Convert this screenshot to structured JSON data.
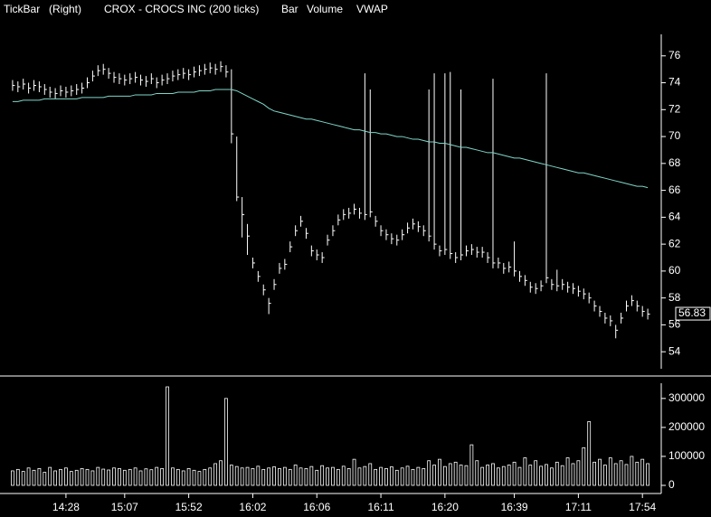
{
  "chart_data": [
    {
      "type": "ohlc",
      "title": "TickBar",
      "subtitle": "(Right)",
      "symbol": "CROX - CROCS INC (200 ticks)",
      "xlim": [
        -1,
        120
      ],
      "ylim": [
        52.6,
        77.8
      ],
      "yticks": [
        54,
        56,
        58,
        60,
        62,
        64,
        66,
        68,
        70,
        72,
        74,
        76
      ],
      "last_price": 56.83,
      "series": [
        {
          "name": "Bar",
          "color": "#ffffff",
          "high": [
            74.2,
            74.1,
            74.3,
            74.0,
            74.2,
            74.1,
            73.9,
            73.7,
            73.6,
            73.8,
            73.7,
            73.8,
            73.9,
            74.0,
            74.4,
            74.9,
            75.3,
            75.4,
            75.1,
            74.8,
            74.7,
            74.6,
            74.7,
            74.8,
            74.6,
            74.5,
            74.7,
            74.4,
            74.6,
            74.7,
            74.9,
            75.0,
            75.1,
            75.0,
            75.2,
            75.3,
            75.4,
            75.5,
            75.4,
            75.6,
            75.3,
            75.0,
            70.0,
            65.5,
            63.5,
            61.0,
            60.0,
            59.0,
            58.0,
            59.4,
            60.6,
            60.9,
            62.2,
            63.4,
            64.1,
            63.2,
            61.9,
            61.6,
            61.4,
            62.7,
            63.4,
            64.2,
            64.6,
            64.7,
            65.0,
            64.7,
            74.7,
            73.5,
            64.1,
            63.4,
            63.1,
            62.8,
            62.7,
            63.1,
            63.6,
            63.9,
            63.7,
            63.4,
            73.5,
            74.7,
            61.9,
            74.7,
            74.8,
            61.4,
            73.5,
            61.9,
            62.0,
            61.8,
            61.8,
            61.4,
            74.3,
            61.0,
            60.6,
            60.7,
            62.2,
            60.0,
            59.7,
            59.2,
            59.1,
            59.3,
            74.7,
            59.4,
            60.1,
            59.4,
            59.2,
            59.1,
            58.9,
            58.7,
            58.4,
            57.8,
            57.4,
            56.9,
            56.7,
            56.0,
            56.9,
            57.8,
            58.2,
            57.8,
            57.4,
            57.2
          ],
          "low": [
            73.4,
            73.3,
            73.5,
            73.2,
            73.4,
            73.3,
            73.1,
            72.9,
            72.8,
            73.0,
            72.9,
            73.0,
            73.1,
            73.2,
            73.6,
            74.1,
            74.5,
            74.6,
            74.3,
            74.0,
            73.9,
            73.8,
            73.9,
            74.0,
            73.8,
            73.7,
            73.9,
            73.6,
            73.8,
            73.9,
            74.1,
            74.2,
            74.3,
            74.2,
            74.4,
            74.5,
            74.6,
            74.7,
            74.6,
            74.8,
            74.4,
            69.5,
            65.2,
            62.5,
            61.2,
            60.2,
            59.2,
            58.2,
            56.8,
            58.6,
            59.8,
            60.1,
            61.4,
            62.6,
            63.3,
            62.4,
            61.1,
            60.8,
            60.6,
            61.9,
            62.6,
            63.4,
            63.8,
            63.9,
            64.2,
            63.9,
            63.8,
            64.0,
            63.3,
            62.6,
            62.3,
            62.0,
            61.9,
            62.3,
            62.8,
            63.1,
            62.9,
            62.6,
            62.2,
            61.6,
            61.1,
            61.2,
            60.9,
            60.6,
            60.8,
            61.1,
            61.2,
            61.0,
            61.0,
            60.6,
            60.2,
            60.2,
            59.8,
            59.9,
            59.6,
            59.2,
            58.9,
            58.4,
            58.3,
            58.5,
            59.1,
            58.6,
            58.5,
            58.6,
            58.4,
            58.3,
            58.1,
            57.9,
            57.6,
            57.0,
            56.6,
            56.1,
            55.9,
            55.0,
            56.1,
            57.0,
            57.4,
            57.0,
            56.6,
            56.4
          ],
          "close": [
            73.8,
            73.7,
            73.9,
            73.6,
            73.8,
            73.7,
            73.5,
            73.3,
            73.2,
            73.4,
            73.3,
            73.4,
            73.5,
            73.6,
            74.0,
            74.5,
            74.9,
            75.0,
            74.7,
            74.4,
            74.3,
            74.2,
            74.3,
            74.4,
            74.2,
            74.1,
            74.3,
            74.0,
            74.2,
            74.3,
            74.5,
            74.6,
            74.7,
            74.6,
            74.8,
            74.9,
            75.0,
            75.1,
            75.0,
            75.2,
            74.8,
            70.2,
            65.5,
            64.2,
            62.6,
            60.6,
            59.6,
            58.6,
            57.6,
            59.0,
            60.2,
            60.5,
            61.8,
            63.0,
            63.7,
            62.8,
            61.5,
            61.2,
            61.0,
            62.3,
            63.0,
            63.8,
            64.2,
            64.3,
            64.6,
            64.3,
            64.2,
            64.4,
            63.7,
            63.0,
            62.7,
            62.4,
            62.3,
            62.7,
            63.2,
            63.5,
            63.3,
            63.0,
            62.6,
            62.0,
            61.5,
            61.6,
            61.3,
            61.0,
            61.2,
            61.5,
            61.6,
            61.4,
            61.4,
            61.0,
            60.6,
            60.6,
            60.2,
            60.3,
            60.0,
            59.6,
            59.3,
            58.8,
            58.7,
            58.9,
            59.5,
            59.0,
            58.9,
            59.0,
            58.8,
            58.7,
            58.5,
            58.3,
            58.0,
            57.4,
            57.0,
            56.5,
            56.3,
            55.6,
            56.5,
            57.4,
            57.8,
            57.4,
            57.0,
            56.8
          ]
        },
        {
          "name": "VWAP",
          "color": "#7fd6c8",
          "values": [
            72.6,
            72.6,
            72.7,
            72.7,
            72.7,
            72.7,
            72.8,
            72.8,
            72.8,
            72.8,
            72.8,
            72.8,
            72.8,
            72.9,
            72.9,
            72.9,
            72.9,
            72.9,
            73.0,
            73.0,
            73.0,
            73.0,
            73.0,
            73.1,
            73.1,
            73.1,
            73.1,
            73.2,
            73.2,
            73.2,
            73.2,
            73.3,
            73.3,
            73.3,
            73.3,
            73.4,
            73.4,
            73.4,
            73.5,
            73.5,
            73.5,
            73.5,
            73.4,
            73.2,
            73.0,
            72.8,
            72.6,
            72.4,
            72.1,
            71.9,
            71.8,
            71.7,
            71.6,
            71.5,
            71.4,
            71.3,
            71.3,
            71.2,
            71.1,
            71.0,
            70.9,
            70.8,
            70.7,
            70.6,
            70.5,
            70.5,
            70.4,
            70.3,
            70.3,
            70.2,
            70.2,
            70.1,
            70.0,
            70.0,
            69.9,
            69.8,
            69.8,
            69.7,
            69.6,
            69.6,
            69.5,
            69.5,
            69.4,
            69.3,
            69.2,
            69.2,
            69.1,
            69.0,
            68.9,
            68.8,
            68.8,
            68.7,
            68.6,
            68.5,
            68.4,
            68.4,
            68.3,
            68.2,
            68.1,
            68.0,
            67.9,
            67.8,
            67.7,
            67.6,
            67.5,
            67.4,
            67.3,
            67.3,
            67.2,
            67.1,
            67.0,
            66.9,
            66.8,
            66.7,
            66.6,
            66.5,
            66.4,
            66.3,
            66.3,
            66.2
          ]
        }
      ]
    },
    {
      "type": "bar",
      "xlim": [
        -1,
        120
      ],
      "xticks": [
        {
          "value": 10,
          "label": "14:28"
        },
        {
          "value": 21,
          "label": "15:07"
        },
        {
          "value": 33,
          "label": "15:52"
        },
        {
          "value": 45,
          "label": "16:02"
        },
        {
          "value": 57,
          "label": "16:06"
        },
        {
          "value": 69,
          "label": "16:11"
        },
        {
          "value": 81,
          "label": "16:20"
        },
        {
          "value": 94,
          "label": "16:39"
        },
        {
          "value": 106,
          "label": "17:11"
        },
        {
          "value": 118,
          "label": "17:54"
        }
      ],
      "ylim": [
        -25000,
        365000
      ],
      "yticks": [
        0,
        100000,
        200000,
        300000
      ],
      "series": [
        {
          "name": "Volume",
          "color": "#ffffff",
          "values": [
            50000,
            55000,
            48000,
            60000,
            52000,
            58000,
            45000,
            62000,
            50000,
            55000,
            60000,
            48000,
            52000,
            58000,
            55000,
            50000,
            62000,
            56000,
            53000,
            60000,
            58000,
            52000,
            55000,
            60000,
            50000,
            57000,
            54000,
            62000,
            58000,
            340000,
            60000,
            55000,
            50000,
            58000,
            52000,
            48000,
            55000,
            60000,
            75000,
            85000,
            300000,
            70000,
            65000,
            60000,
            62000,
            58000,
            66000,
            55000,
            60000,
            64000,
            58000,
            62000,
            55000,
            70000,
            60000,
            58000,
            65000,
            52000,
            68000,
            60000,
            62000,
            55000,
            66000,
            58000,
            90000,
            60000,
            65000,
            75000,
            55000,
            62000,
            58000,
            64000,
            52000,
            60000,
            66000,
            55000,
            62000,
            58000,
            85000,
            70000,
            90000,
            65000,
            75000,
            80000,
            70000,
            68000,
            140000,
            85000,
            62000,
            70000,
            75000,
            60000,
            65000,
            70000,
            80000,
            62000,
            95000,
            70000,
            85000,
            66000,
            72000,
            60000,
            80000,
            68000,
            95000,
            75000,
            85000,
            130000,
            220000,
            80000,
            90000,
            70000,
            95000,
            75000,
            85000,
            72000,
            100000,
            80000,
            90000,
            75000
          ]
        }
      ]
    }
  ]
}
